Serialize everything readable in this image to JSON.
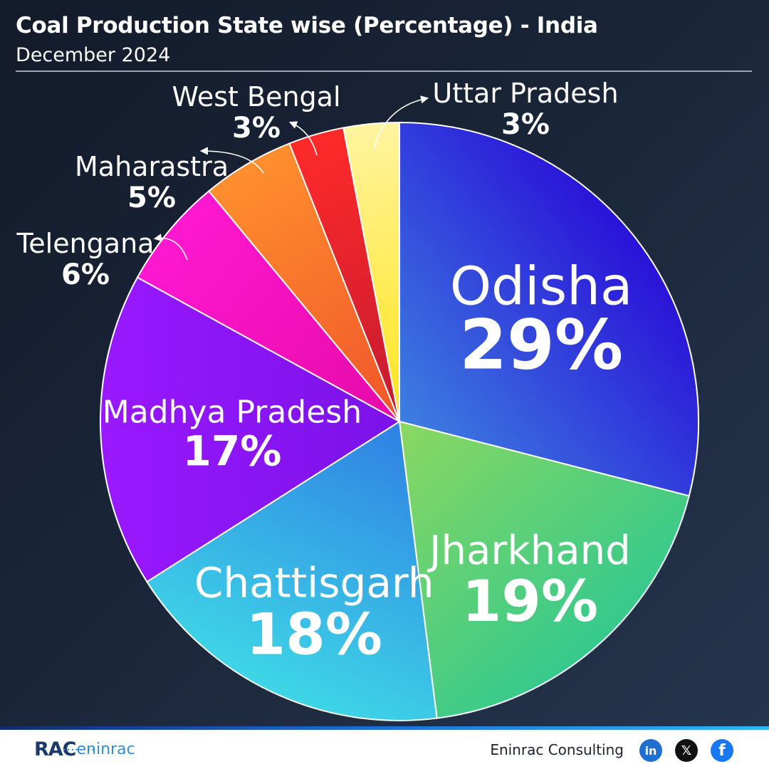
{
  "header": {
    "title": "Coal Production State wise (Percentage) - India",
    "subtitle": "December 2024"
  },
  "chart_data": {
    "type": "pie",
    "title": "Coal Production State wise (Percentage) - India",
    "subtitle": "December 2024",
    "unit": "%",
    "categories": [
      "Odisha",
      "Jharkhand",
      "Chattisgarh",
      "Madhya Pradesh",
      "Telengana",
      "Maharastra",
      "West Bengal",
      "Uttar Pradesh"
    ],
    "values": [
      29,
      19,
      18,
      17,
      6,
      5,
      3,
      3
    ],
    "value_labels": [
      "29%",
      "19%",
      "18%",
      "17%",
      "6%",
      "5%",
      "3%",
      "3%"
    ],
    "colors": [
      [
        "#3d7fe0",
        "#2a12d8"
      ],
      [
        "#8bd860",
        "#35c98d"
      ],
      [
        "#2f80e4",
        "#3ed6e6"
      ],
      [
        "#7a12e8",
        "#9a18ff"
      ],
      [
        "#e60aa8",
        "#ff18d0"
      ],
      [
        "#f0542a",
        "#ff8f2e"
      ],
      [
        "#c41a30",
        "#ff2a2a"
      ],
      [
        "#ffe41a",
        "#fff4a0"
      ]
    ],
    "label_placement": [
      "inside",
      "inside",
      "inside",
      "inside",
      "outside",
      "outside",
      "outside",
      "outside"
    ],
    "legend": "none"
  },
  "footer": {
    "logo_rac": "RAC",
    "logo_eninrac": "eninrac",
    "logo_dots": "••••••••",
    "company": "Eninrac Consulting",
    "social": [
      {
        "name": "linkedin",
        "glyph": "in"
      },
      {
        "name": "x",
        "glyph": "𝕏"
      },
      {
        "name": "facebook",
        "glyph": "f"
      }
    ]
  }
}
